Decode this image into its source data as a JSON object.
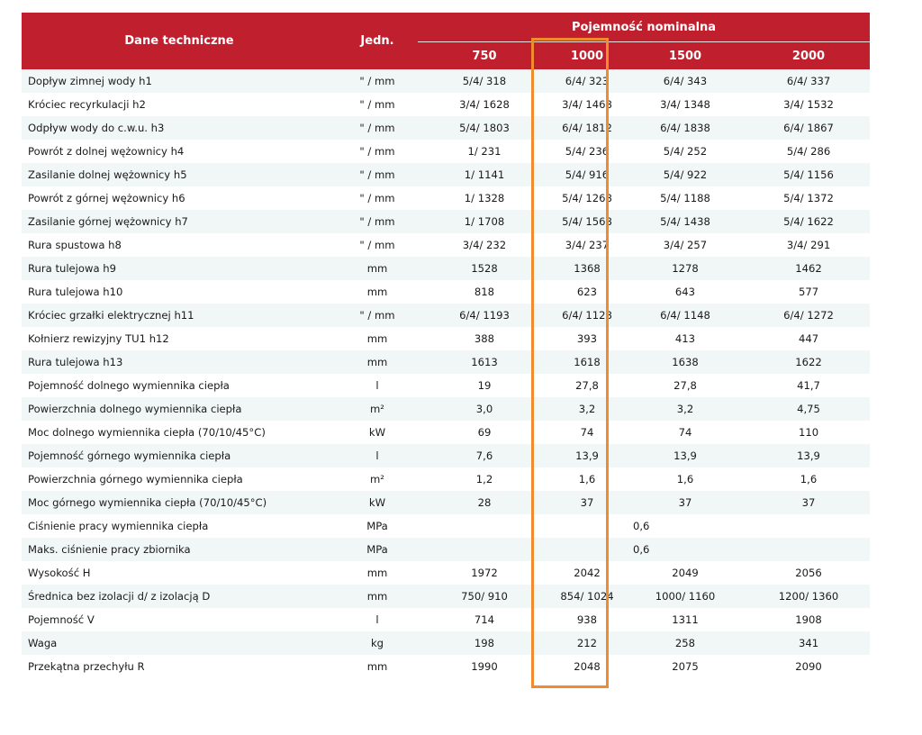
{
  "header": {
    "col_name": "Dane techniczne",
    "col_unit": "Jedn.",
    "group": "Pojemność nominalna",
    "capacities": [
      "750",
      "1000",
      "1500",
      "2000"
    ]
  },
  "rows": [
    {
      "name": "Dopływ zimnej wody h1",
      "unit": "\" / mm",
      "v750": "5/4/ 318",
      "v1000": "6/4/ 323",
      "v1500": "6/4/ 343",
      "v2000": "6/4/ 337"
    },
    {
      "name": "Króciec recyrkulacji h2",
      "unit": "\" / mm",
      "v750": "3/4/ 1628",
      "v1000": "3/4/ 1468",
      "v1500": "3/4/ 1348",
      "v2000": "3/4/ 1532"
    },
    {
      "name": "Odpływ wody do c.w.u. h3",
      "unit": "\" / mm",
      "v750": "5/4/ 1803",
      "v1000": "6/4/ 1812",
      "v1500": "6/4/ 1838",
      "v2000": "6/4/ 1867"
    },
    {
      "name": "Powrót z dolnej wężownicy h4",
      "unit": "\" / mm",
      "v750": "1/ 231",
      "v1000": "5/4/ 236",
      "v1500": "5/4/ 252",
      "v2000": "5/4/ 286"
    },
    {
      "name": "Zasilanie dolnej wężownicy h5",
      "unit": "\" / mm",
      "v750": "1/ 1141",
      "v1000": "5/4/ 916",
      "v1500": "5/4/ 922",
      "v2000": "5/4/ 1156"
    },
    {
      "name": "Powrót z górnej wężownicy h6",
      "unit": "\" / mm",
      "v750": "1/ 1328",
      "v1000": "5/4/ 1268",
      "v1500": "5/4/ 1188",
      "v2000": "5/4/ 1372"
    },
    {
      "name": "Zasilanie górnej wężownicy h7",
      "unit": "\" / mm",
      "v750": "1/ 1708",
      "v1000": "5/4/ 1568",
      "v1500": "5/4/ 1438",
      "v2000": "5/4/ 1622"
    },
    {
      "name": "Rura spustowa h8",
      "unit": "\" / mm",
      "v750": "3/4/ 232",
      "v1000": "3/4/ 237",
      "v1500": "3/4/ 257",
      "v2000": "3/4/ 291"
    },
    {
      "name": "Rura tulejowa h9",
      "unit": "mm",
      "v750": "1528",
      "v1000": "1368",
      "v1500": "1278",
      "v2000": "1462"
    },
    {
      "name": "Rura tulejowa h10",
      "unit": "mm",
      "v750": "818",
      "v1000": "623",
      "v1500": "643",
      "v2000": "577"
    },
    {
      "name": "Króciec grzałki elektrycznej h11",
      "unit": "\" / mm",
      "v750": "6/4/ 1193",
      "v1000": "6/4/ 1128",
      "v1500": "6/4/ 1148",
      "v2000": "6/4/ 1272"
    },
    {
      "name": "Kołnierz rewizyjny TU1 h12",
      "unit": "mm",
      "v750": "388",
      "v1000": "393",
      "v1500": "413",
      "v2000": "447"
    },
    {
      "name": "Rura tulejowa h13",
      "unit": "mm",
      "v750": "1613",
      "v1000": "1618",
      "v1500": "1638",
      "v2000": "1622"
    },
    {
      "name": "Pojemność dolnego wymiennika ciepła",
      "unit": "l",
      "v750": "19",
      "v1000": "27,8",
      "v1500": "27,8",
      "v2000": "41,7"
    },
    {
      "name": "Powierzchnia dolnego wymiennika ciepła",
      "unit": "m²",
      "v750": "3,0",
      "v1000": "3,2",
      "v1500": "3,2",
      "v2000": "4,75"
    },
    {
      "name": "Moc dolnego wymiennika ciepła (70/10/45°C)",
      "unit": "kW",
      "v750": "69",
      "v1000": "74",
      "v1500": "74",
      "v2000": "110"
    },
    {
      "name": "Pojemność górnego wymiennika ciepła",
      "unit": "l",
      "v750": "7,6",
      "v1000": "13,9",
      "v1500": "13,9",
      "v2000": "13,9"
    },
    {
      "name": "Powierzchnia górnego wymiennika ciepła",
      "unit": "m²",
      "v750": "1,2",
      "v1000": "1,6",
      "v1500": "1,6",
      "v2000": "1,6"
    },
    {
      "name": "Moc górnego wymiennika ciepła (70/10/45°C)",
      "unit": "kW",
      "v750": "28",
      "v1000": "37",
      "v1500": "37",
      "v2000": "37"
    },
    {
      "name": "Ciśnienie pracy wymiennika ciepła",
      "unit": "MPa",
      "span": "0,6"
    },
    {
      "name": "Maks. ciśnienie pracy zbiornika",
      "unit": "MPa",
      "span": "0,6"
    },
    {
      "name": "Wysokość H",
      "unit": "mm",
      "v750": "1972",
      "v1000": "2042",
      "v1500": "2049",
      "v2000": "2056"
    },
    {
      "name": "Średnica bez izolacji d/ z izolacją D",
      "unit": "mm",
      "v750": "750/ 910",
      "v1000": "854/ 1024",
      "v1500": "1000/ 1160",
      "v2000": "1200/ 1360"
    },
    {
      "name": "Pojemność V",
      "unit": "l",
      "v750": "714",
      "v1000": "938",
      "v1500": "1311",
      "v2000": "1908"
    },
    {
      "name": "Waga",
      "unit": "kg",
      "v750": "198",
      "v1000": "212",
      "v1500": "258",
      "v2000": "341"
    },
    {
      "name": "Przekątna przechyłu R",
      "unit": "mm",
      "v750": "1990",
      "v1000": "2048",
      "v1500": "2075",
      "v2000": "2090"
    }
  ],
  "colors": {
    "header_bg": "#c0202e",
    "stripe_bg": "#f1f7f7",
    "highlight_border": "#f28a2e"
  }
}
